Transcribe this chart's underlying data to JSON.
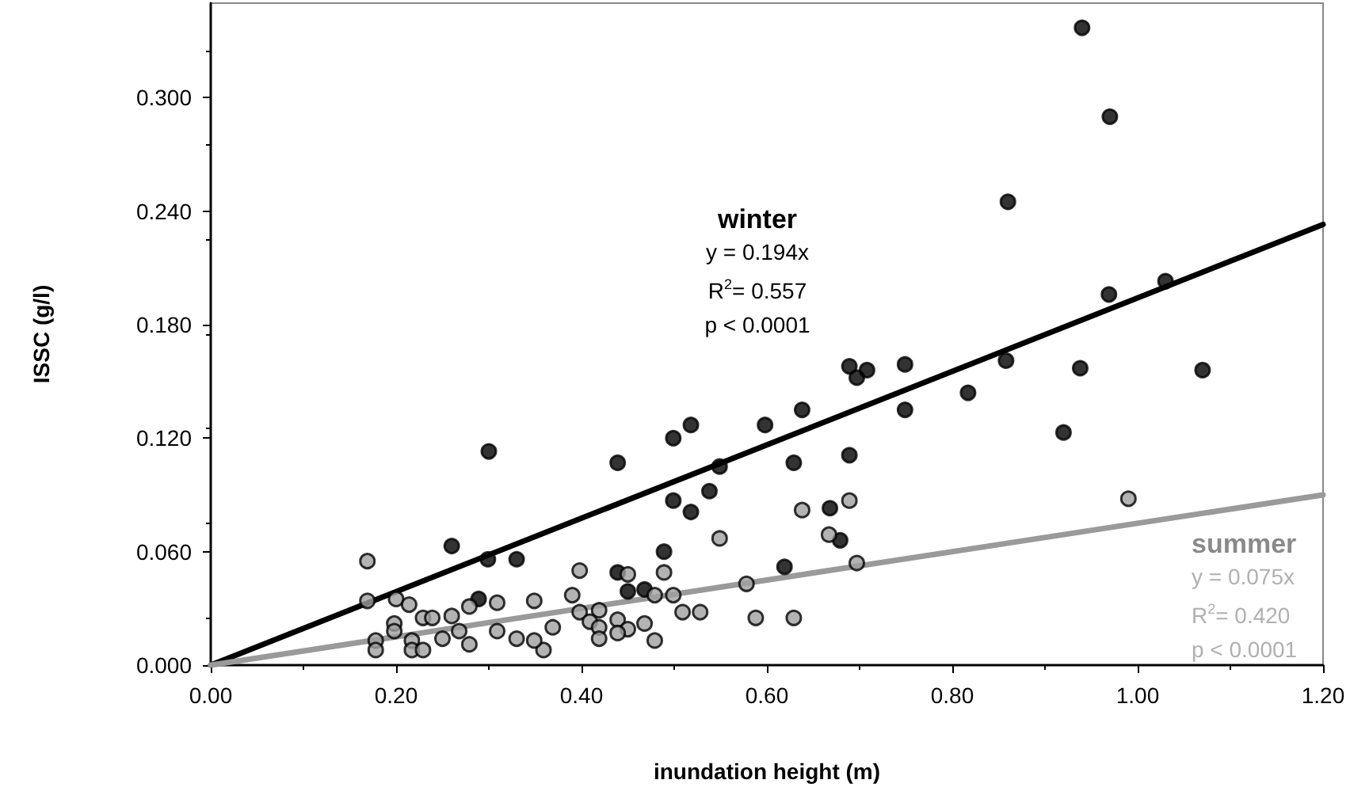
{
  "chart_data": {
    "type": "scatter",
    "xlabel": "inundation height (m)",
    "ylabel": "ISSC (g/l)",
    "xlim": [
      0,
      1.2
    ],
    "ylim": [
      0,
      0.35
    ],
    "xticks": [
      {
        "value": 0,
        "label": "0.00"
      },
      {
        "value": 0.2,
        "label": "0.20"
      },
      {
        "value": 0.4,
        "label": "0.40"
      },
      {
        "value": 0.6,
        "label": "0.60"
      },
      {
        "value": 0.8,
        "label": "0.80"
      },
      {
        "value": 1.0,
        "label": "1.00"
      },
      {
        "value": 1.2,
        "label": "1.20"
      }
    ],
    "yticks": [
      {
        "value": 0,
        "label": "0.000"
      },
      {
        "value": 0.06,
        "label": "0.060"
      },
      {
        "value": 0.12,
        "label": "0.120"
      },
      {
        "value": 0.18,
        "label": "0.180"
      },
      {
        "value": 0.24,
        "label": "0.240"
      },
      {
        "value": 0.3,
        "label": "0.300"
      }
    ],
    "grid": false,
    "legend": false,
    "marker": "circle",
    "annotations": [
      "y = 0.194x",
      "R$^{2}$= 0.557",
      "p < 0.0001",
      "y = 0.075x",
      "R$^{2}$= 0.420",
      "p < 0.0001"
    ],
    "series": [
      {
        "name": "winter",
        "color": "#000000",
        "x": [
          0.94,
          0.97,
          0.86,
          1.03,
          1.07,
          0.689,
          0.708,
          0.697,
          0.749,
          0.749,
          0.817,
          0.858,
          0.938,
          0.969,
          0.92,
          0.689,
          0.439,
          0.499,
          0.518,
          0.598,
          0.638,
          0.549,
          0.629,
          0.499,
          0.518,
          0.538,
          0.668,
          0.679,
          0.489,
          0.619,
          0.439,
          0.45,
          0.468,
          0.26,
          0.299,
          0.33,
          0.289,
          0.3
        ],
        "values": [
          0.337,
          0.29,
          0.245,
          0.203,
          0.156,
          0.158,
          0.156,
          0.152,
          0.159,
          0.135,
          0.144,
          0.161,
          0.157,
          0.196,
          0.123,
          0.111,
          0.107,
          0.12,
          0.127,
          0.127,
          0.135,
          0.105,
          0.107,
          0.087,
          0.081,
          0.092,
          0.083,
          0.066,
          0.06,
          0.052,
          0.049,
          0.039,
          0.04,
          0.063,
          0.056,
          0.056,
          0.035,
          0.113
        ]
      },
      {
        "name": "summer",
        "color": "#a0a0a0",
        "x": [
          0.689,
          0.99,
          0.697,
          0.638,
          0.549,
          0.667,
          0.489,
          0.45,
          0.398,
          0.39,
          0.578,
          0.499,
          0.479,
          0.398,
          0.419,
          0.409,
          0.419,
          0.439,
          0.45,
          0.468,
          0.439,
          0.509,
          0.528,
          0.588,
          0.629,
          0.419,
          0.479,
          0.369,
          0.359,
          0.169,
          0.169,
          0.2,
          0.214,
          0.229,
          0.239,
          0.26,
          0.279,
          0.309,
          0.349,
          0.198,
          0.198,
          0.178,
          0.178,
          0.217,
          0.217,
          0.229,
          0.25,
          0.268,
          0.279,
          0.309,
          0.33,
          0.349
        ],
        "values": [
          0.087,
          0.088,
          0.054,
          0.082,
          0.067,
          0.069,
          0.049,
          0.048,
          0.05,
          0.037,
          0.043,
          0.037,
          0.037,
          0.028,
          0.029,
          0.023,
          0.02,
          0.024,
          0.019,
          0.022,
          0.017,
          0.028,
          0.028,
          0.025,
          0.025,
          0.014,
          0.013,
          0.02,
          0.008,
          0.055,
          0.034,
          0.035,
          0.032,
          0.025,
          0.025,
          0.026,
          0.031,
          0.033,
          0.034,
          0.022,
          0.018,
          0.013,
          0.008,
          0.013,
          0.008,
          0.008,
          0.014,
          0.018,
          0.011,
          0.018,
          0.014,
          0.013
        ]
      },
      {
        "type": "line",
        "color": "#000000",
        "x": [
          0,
          1.2
        ],
        "values": [
          0,
          0.233
        ],
        "marker": "none"
      },
      {
        "type": "line",
        "color": "#9a9a9a",
        "x": [
          0,
          1.2
        ],
        "values": [
          0,
          0.09
        ],
        "marker": "none"
      }
    ]
  }
}
